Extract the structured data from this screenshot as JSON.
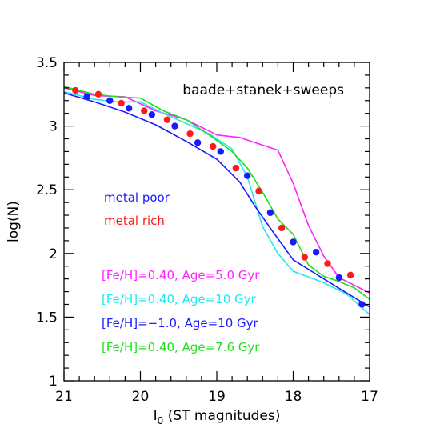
{
  "chart_data": {
    "type": "scatter",
    "title_annotation": "baade+stanek+sweeps",
    "xlabel_main": "I",
    "xlabel_sub": "0",
    "xlabel_rest": " (ST magnitudes)",
    "ylabel": "log(N)",
    "xlim": [
      21,
      17
    ],
    "ylim": [
      1,
      3.5
    ],
    "x_ticks": [
      21,
      20,
      19,
      18,
      17
    ],
    "x_tick_labels": [
      "21",
      "20",
      "19",
      "18",
      "17"
    ],
    "y_ticks": [
      1,
      1.5,
      2,
      2.5,
      3,
      3.5
    ],
    "y_tick_labels": [
      "1",
      "1.5",
      "2",
      "2.5",
      "3",
      "3.5"
    ],
    "colors": {
      "magenta": "#ff22ff",
      "cyan": "#22e6f0",
      "blue": "#1a1aff",
      "green": "#22dd22",
      "red": "#ff1a1a",
      "frame": "#000000"
    },
    "legend_points": [
      {
        "label": "metal poor",
        "color": "#1a1aff"
      },
      {
        "label": "metal rich",
        "color": "#ff1a1a"
      }
    ],
    "legend_models": [
      {
        "label": "[Fe/H]=0.40, Age=5.0 Gyr",
        "color": "#ff22ff"
      },
      {
        "label": "[Fe/H]=0.40, Age=10 Gyr",
        "color": "#22e6f0"
      },
      {
        "label": "[Fe/H]=−1.0, Age=10 Gyr",
        "color": "#1a1aff"
      },
      {
        "label": "[Fe/H]=0.40, Age=7.6 Gyr",
        "color": "#22dd22"
      }
    ],
    "points": [
      {
        "name": "metal poor",
        "color": "#1a1aff",
        "x": [
          20.7,
          20.4,
          20.15,
          19.85,
          19.55,
          19.25,
          18.95,
          18.6,
          18.3,
          18.0,
          17.7,
          17.4,
          17.1
        ],
        "y": [
          3.23,
          3.2,
          3.14,
          3.09,
          3.0,
          2.87,
          2.8,
          2.61,
          2.32,
          2.09,
          2.01,
          1.81,
          1.6
        ]
      },
      {
        "name": "metal rich",
        "color": "#ff1a1a",
        "x": [
          20.85,
          20.55,
          20.25,
          19.95,
          19.65,
          19.35,
          19.05,
          18.75,
          18.45,
          18.15,
          17.85,
          17.55,
          17.25
        ],
        "y": [
          3.28,
          3.25,
          3.18,
          3.12,
          3.05,
          2.94,
          2.84,
          2.67,
          2.49,
          2.2,
          1.97,
          1.92,
          1.83
        ]
      }
    ],
    "lines": [
      {
        "name": "[Fe/H]=0.40, Age=5.0 Gyr",
        "color": "#ff22ff",
        "x": [
          21,
          20.6,
          20.2,
          19.8,
          19.4,
          19.0,
          18.7,
          18.5,
          18.2,
          18.0,
          17.8,
          17.6,
          17.4,
          17.0
        ],
        "y": [
          3.3,
          3.24,
          3.23,
          3.12,
          3.05,
          2.93,
          2.91,
          2.87,
          2.81,
          2.55,
          2.22,
          1.98,
          1.81,
          1.69
        ]
      },
      {
        "name": "[Fe/H]=0.40, Age=10 Gyr",
        "color": "#22e6f0",
        "x": [
          21,
          20.6,
          20.3,
          20.0,
          19.7,
          19.4,
          19.1,
          18.8,
          18.6,
          18.4,
          18.2,
          18.0,
          17.6,
          17.3,
          17.0
        ],
        "y": [
          3.27,
          3.21,
          3.19,
          3.19,
          3.1,
          3.02,
          2.94,
          2.82,
          2.6,
          2.21,
          2.0,
          1.86,
          1.77,
          1.68,
          1.52
        ]
      },
      {
        "name": "[Fe/H]=−1.0, Age=10 Gyr",
        "color": "#1a1aff",
        "x": [
          21,
          20.6,
          20.2,
          19.8,
          19.4,
          19.0,
          18.7,
          18.5,
          18.3,
          18.0,
          17.6,
          17.3,
          17.0
        ],
        "y": [
          3.26,
          3.19,
          3.11,
          3.01,
          2.88,
          2.74,
          2.56,
          2.37,
          2.2,
          1.95,
          1.8,
          1.69,
          1.58
        ]
      },
      {
        "name": "[Fe/H]=0.40, Age=7.6 Gyr",
        "color": "#22dd22",
        "x": [
          21,
          20.6,
          20.3,
          20.0,
          19.7,
          19.4,
          19.1,
          18.8,
          18.6,
          18.4,
          18.2,
          18.0,
          17.8,
          17.6,
          17.4,
          17.2,
          17.0
        ],
        "y": [
          3.31,
          3.25,
          3.23,
          3.22,
          3.12,
          3.05,
          2.93,
          2.8,
          2.67,
          2.48,
          2.27,
          2.15,
          1.91,
          1.82,
          1.78,
          1.73,
          1.64
        ]
      }
    ]
  }
}
